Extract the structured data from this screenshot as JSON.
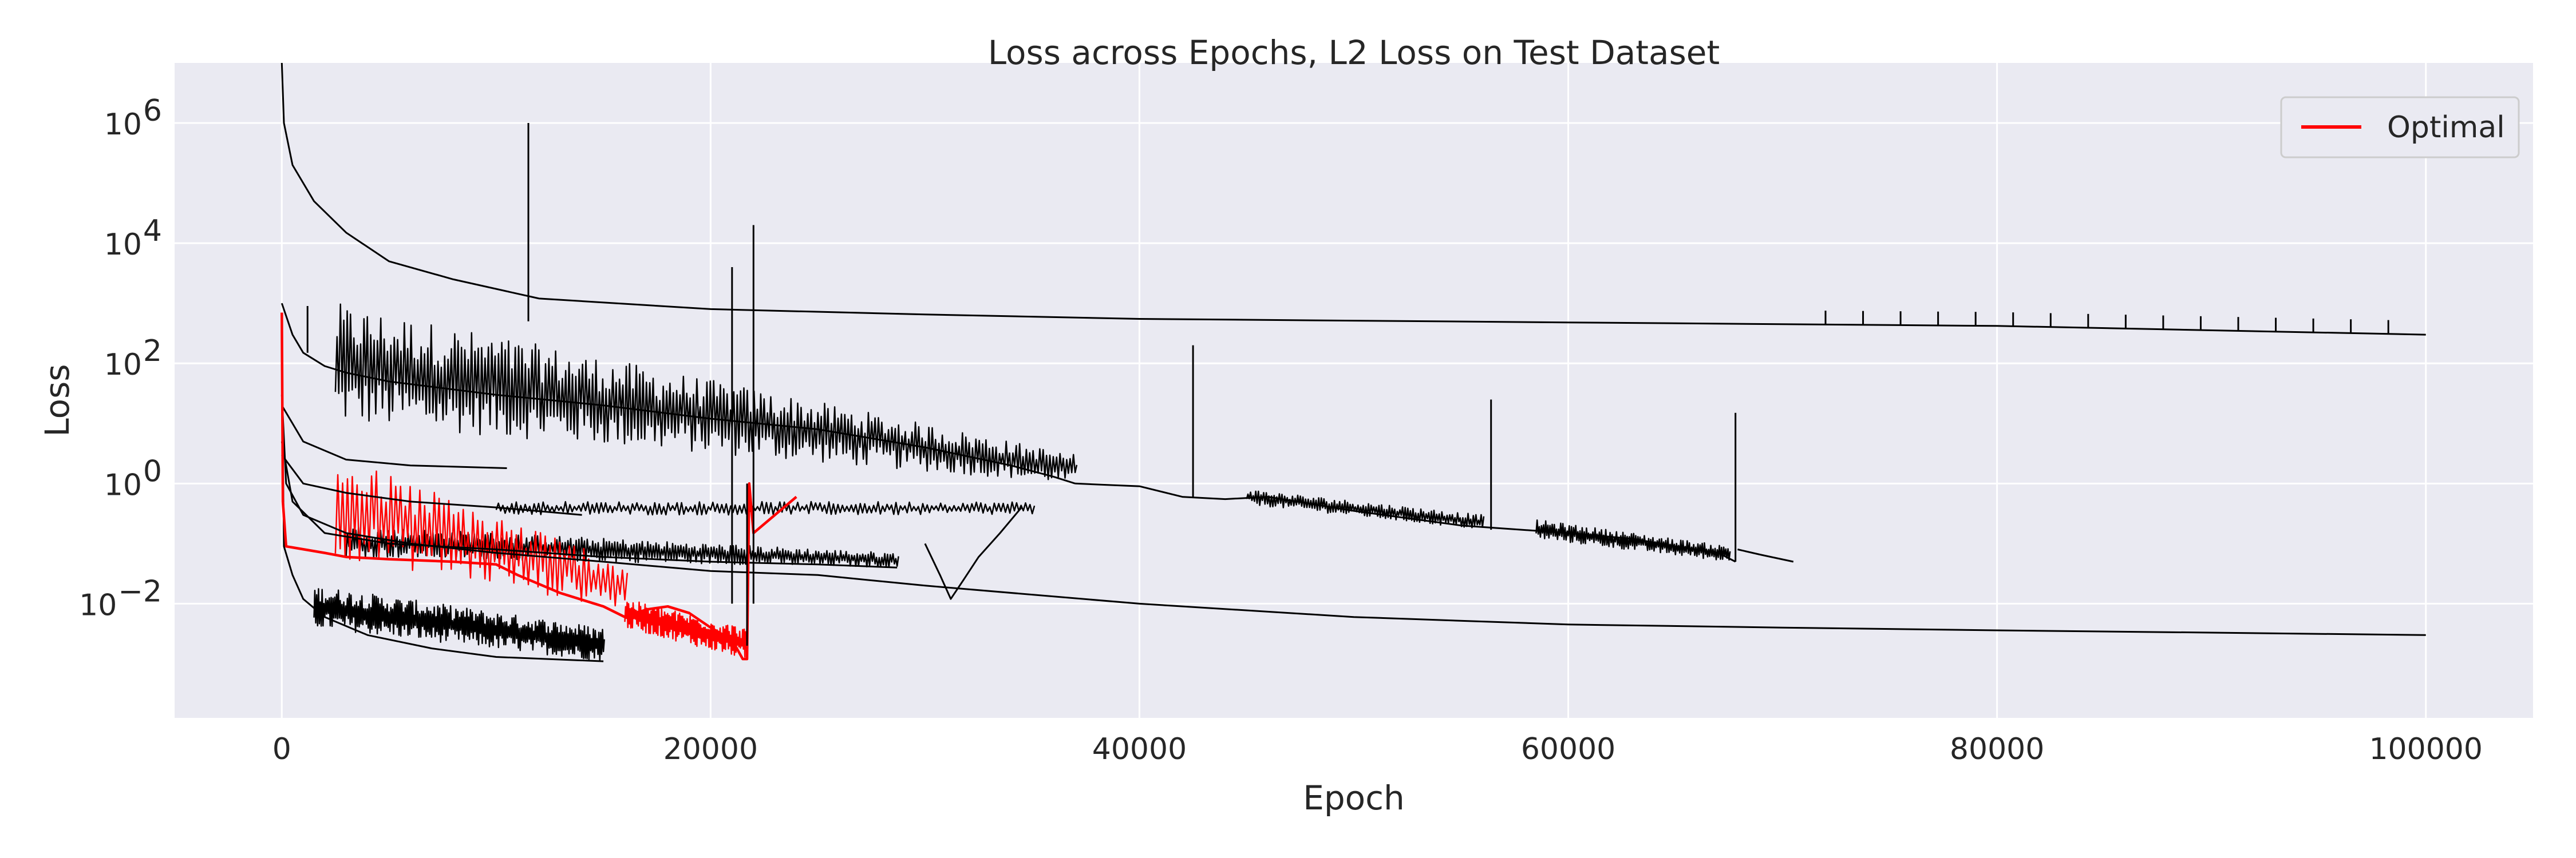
{
  "chart_data": {
    "type": "line",
    "title": "Loss across Epochs, L2 Loss on Test Dataset",
    "xlabel": "Epoch",
    "ylabel": "Loss",
    "xlim": [
      -5000,
      105000
    ],
    "ylim_log10": [
      -3.9,
      7.0
    ],
    "yscale": "log",
    "x_ticks": [
      0,
      20000,
      40000,
      60000,
      80000,
      100000
    ],
    "x_tick_labels": [
      "0",
      "20000",
      "40000",
      "60000",
      "80000",
      "100000"
    ],
    "y_tick_exponents": [
      -2,
      0,
      2,
      4,
      6
    ],
    "y_tick_labels": [
      {
        "base": "10",
        "exp": "−2"
      },
      {
        "base": "10",
        "exp": "0"
      },
      {
        "base": "10",
        "exp": "2"
      },
      {
        "base": "10",
        "exp": "4"
      },
      {
        "base": "10",
        "exp": "6"
      }
    ],
    "grid": true,
    "legend": {
      "placement": "top-right",
      "entries": [
        {
          "name": "Optimal",
          "color": "#ff0000"
        }
      ]
    },
    "colors": {
      "background": "#eaeaf2",
      "grid": "#ffffff",
      "runs": "#000000",
      "optimal": "#ff0000",
      "text": "#262626"
    },
    "series": [
      {
        "color": "#000000",
        "x": [
          0,
          100,
          500,
          1500,
          3000,
          5000,
          8000,
          12000,
          20000,
          30000,
          40000,
          60000,
          80000,
          100000
        ],
        "y": [
          10000000,
          1000000,
          200000,
          50000,
          15000,
          5000,
          2500,
          1200,
          800,
          650,
          550,
          480,
          420,
          300
        ]
      },
      {
        "color": "#000000",
        "x": [
          0,
          500,
          1000,
          2000,
          3000,
          5000,
          10000,
          15000,
          20000,
          25000,
          30000,
          34000,
          36000,
          37000
        ],
        "y": [
          1000,
          300,
          150,
          90,
          70,
          50,
          30,
          20,
          12,
          8,
          4,
          2,
          1.3,
          1.0
        ]
      },
      {
        "color": "#000000",
        "x": [
          37000,
          40000,
          42000,
          44000,
          46000,
          50000,
          55000,
          60000,
          63000,
          65000,
          67000,
          67800
        ],
        "y": [
          1.0,
          0.9,
          0.6,
          0.55,
          0.6,
          0.35,
          0.2,
          0.15,
          0.12,
          0.09,
          0.07,
          0.05
        ]
      },
      {
        "color": "#000000",
        "x": [
          0,
          200,
          1000,
          3000,
          6000,
          10000,
          15000,
          20000,
          25000,
          30000,
          40000,
          50000,
          60000,
          70000,
          80000,
          90000,
          100000
        ],
        "y": [
          30,
          1,
          0.3,
          0.15,
          0.1,
          0.07,
          0.05,
          0.035,
          0.03,
          0.02,
          0.01,
          0.006,
          0.0045,
          0.004,
          0.0036,
          0.0033,
          0.003
        ]
      },
      {
        "color": "#000000",
        "x": [
          0,
          100,
          500,
          1000,
          2000,
          4000,
          7000,
          10000,
          15000
        ],
        "y": [
          100,
          0.09,
          0.03,
          0.012,
          0.006,
          0.003,
          0.0018,
          0.0013,
          0.0011
        ]
      },
      {
        "color": "#000000",
        "x": [
          0,
          500,
          2000,
          5000,
          10000,
          15000,
          20000,
          25000,
          28700
        ],
        "y": [
          5,
          0.5,
          0.15,
          0.1,
          0.08,
          0.06,
          0.05,
          0.045,
          0.04
        ]
      },
      {
        "color": "#000000",
        "x": [
          0,
          1000,
          3000,
          6000,
          10500
        ],
        "y": [
          20,
          5,
          2.5,
          2,
          1.8
        ]
      },
      {
        "color": "#000000",
        "x": [
          0,
          1000,
          3000,
          6000,
          10000,
          14000
        ],
        "y": [
          3,
          1,
          0.7,
          0.5,
          0.4,
          0.3
        ]
      },
      {
        "color": "#000000",
        "x": [
          30000,
          30700,
          31200,
          31800,
          32500,
          33500,
          34500
        ],
        "y": [
          0.1,
          0.03,
          0.012,
          0.025,
          0.06,
          0.15,
          0.4
        ]
      },
      {
        "color": "#000000",
        "x": [
          67900,
          69000,
          70500
        ],
        "y": [
          0.08,
          0.065,
          0.05
        ]
      },
      {
        "name": "Optimal",
        "color": "#ff0000",
        "x": [
          0,
          50,
          200,
          2000,
          3000,
          5000,
          8000,
          10000,
          11000,
          13000,
          15000,
          16000,
          17000,
          18000,
          19000,
          20000,
          21000,
          21500,
          21700,
          21800,
          22000,
          24000
        ],
        "y": [
          700,
          0.5,
          0.09,
          0.07,
          0.06,
          0.055,
          0.05,
          0.045,
          0.03,
          0.015,
          0.009,
          0.006,
          0.008,
          0.009,
          0.007,
          0.004,
          0.0025,
          0.0012,
          0.0012,
          1,
          0.15,
          0.6
        ]
      }
    ],
    "spikes": [
      {
        "color": "#000000",
        "x": 11500,
        "low": 500,
        "high": 1000000
      },
      {
        "color": "#000000",
        "x": 21000,
        "low": 0.01,
        "high": 4000
      },
      {
        "color": "#000000",
        "x": 22000,
        "low": 0.01,
        "high": 20000
      },
      {
        "color": "#000000",
        "x": 42500,
        "low": 0.6,
        "high": 200
      },
      {
        "color": "#000000",
        "x": 56400,
        "low": 0.17,
        "high": 25
      },
      {
        "color": "#000000",
        "x": 67800,
        "low": 0.05,
        "high": 15
      },
      {
        "color": "#000000",
        "x": 1200,
        "low": 150,
        "high": 900
      },
      {
        "color": "#000000",
        "x": 21700,
        "low": 0.002,
        "high": 1
      }
    ],
    "noise_bands": [
      {
        "color": "#000000",
        "x0": 2500,
        "x1": 37000,
        "y0_low": 10,
        "y0_high": 1000,
        "y1_low": 1.0,
        "y1_high": 3,
        "count": 220
      },
      {
        "color": "#000000",
        "x0": 1500,
        "x1": 15000,
        "y0_low": 0.004,
        "y0_high": 0.02,
        "y1_low": 0.0011,
        "y1_high": 0.004,
        "count": 160
      },
      {
        "color": "#000000",
        "x0": 3000,
        "x1": 28700,
        "y0_low": 0.06,
        "y0_high": 0.2,
        "y1_low": 0.04,
        "y1_high": 0.07,
        "count": 200
      },
      {
        "color": "#000000",
        "x0": 10000,
        "x1": 35000,
        "y0_low": 0.3,
        "y0_high": 0.5,
        "y1_low": 0.3,
        "y1_high": 0.5,
        "count": 120
      },
      {
        "color": "#000000",
        "x0": 45000,
        "x1": 56000,
        "y0_low": 0.45,
        "y0_high": 0.8,
        "y1_low": 0.17,
        "y1_high": 0.3,
        "count": 90
      },
      {
        "color": "#000000",
        "x0": 58500,
        "x1": 67500,
        "y0_low": 0.12,
        "y0_high": 0.25,
        "y1_low": 0.05,
        "y1_high": 0.09,
        "count": 90
      },
      {
        "color": "#ff0000",
        "x0": 2500,
        "x1": 16000,
        "y0_low": 0.06,
        "y0_high": 3,
        "y1_low": 0.008,
        "y1_high": 0.05,
        "count": 60
      },
      {
        "color": "#ff0000",
        "x0": 16000,
        "x1": 21600,
        "y0_low": 0.004,
        "y0_high": 0.012,
        "y1_low": 0.0012,
        "y1_high": 0.004,
        "count": 80
      }
    ],
    "periodic_ticks": {
      "color": "#000000",
      "x_start": 72000,
      "x_end": 100000,
      "step": 1750,
      "base_series": 0,
      "height_factor": 1.7
    }
  }
}
